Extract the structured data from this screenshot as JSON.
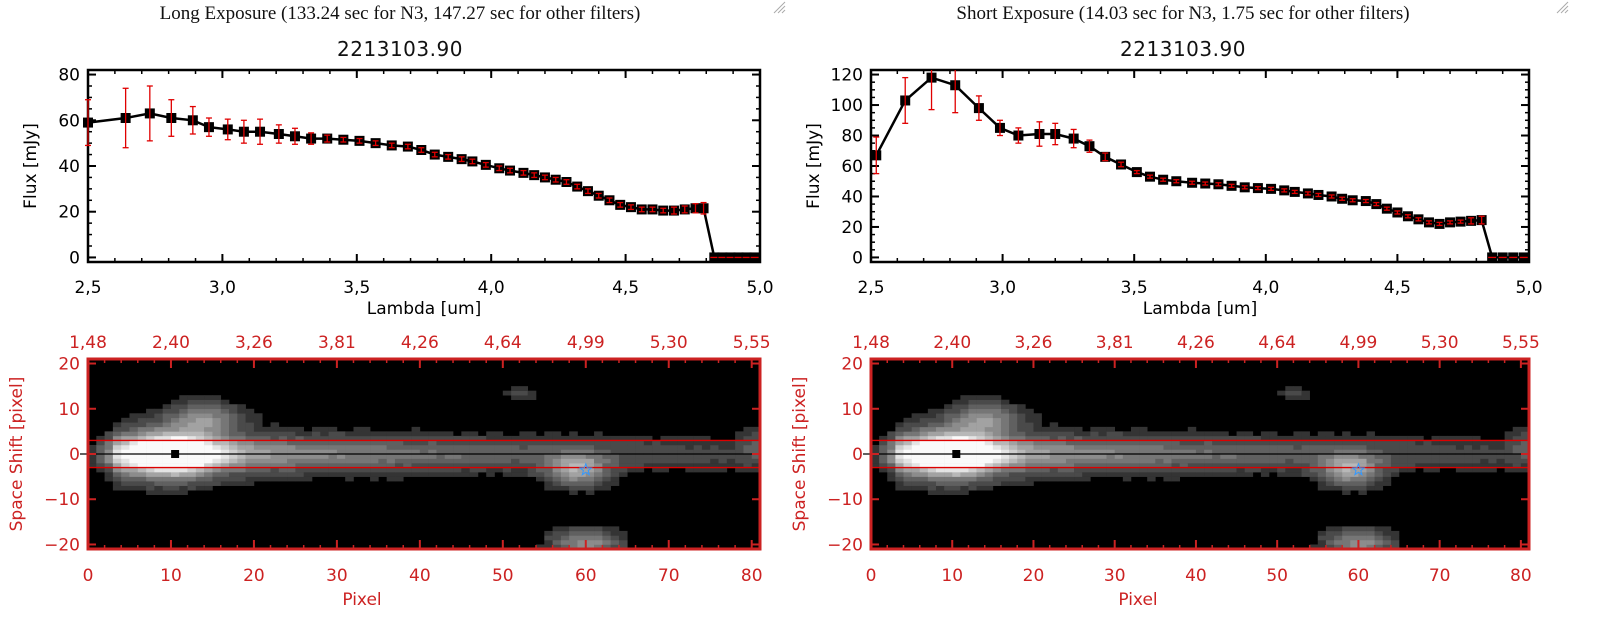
{
  "colors": {
    "spectrum_line": "#000000",
    "error_bar": "#e00000",
    "image_axis": "#cc2222",
    "extraction_line": "#dd0000",
    "centroid_marker": "#000000",
    "star_marker": "#3399ff"
  },
  "panels": [
    {
      "id": "long",
      "exposure_title": "Long Exposure (133.24 sec for N3, 147.27 sec for other filters)",
      "object_title": "2213103.90",
      "spectrum": {
        "xlabel": "Lambda [um]",
        "ylabel": "Flux [mJy]",
        "xticks": [
          "2.5",
          "3.0",
          "3.5",
          "4.0",
          "4.5",
          "5.0"
        ],
        "yticks": [
          "0",
          "20",
          "40",
          "60",
          "80"
        ]
      },
      "image": {
        "xlabel": "Pixel",
        "ylabel": "Space Shift [pixel]",
        "bottom_ticks": [
          "0",
          "10",
          "20",
          "30",
          "40",
          "50",
          "60",
          "70",
          "80"
        ],
        "top_ticks": [
          "1.48",
          "2.40",
          "3.26",
          "3.81",
          "4.26",
          "4.64",
          "4.99",
          "5.30",
          "5.55"
        ],
        "left_ticks": [
          "20",
          "10",
          "0",
          "-10",
          "-20"
        ]
      }
    },
    {
      "id": "short",
      "exposure_title": "Short Exposure (14.03 sec for N3, 1.75 sec for other filters)",
      "object_title": "2213103.90",
      "spectrum": {
        "xlabel": "Lambda [um]",
        "ylabel": "Flux [mJy]",
        "xticks": [
          "2.5",
          "3.0",
          "3.5",
          "4.0",
          "4.5",
          "5.0"
        ],
        "yticks": [
          "0",
          "20",
          "40",
          "60",
          "80",
          "100",
          "120"
        ]
      },
      "image": {
        "xlabel": "Pixel",
        "ylabel": "Space Shift [pixel]",
        "bottom_ticks": [
          "0",
          "10",
          "20",
          "30",
          "40",
          "50",
          "60",
          "70",
          "80"
        ],
        "top_ticks": [
          "1.48",
          "2.40",
          "3.26",
          "3.81",
          "4.26",
          "4.64",
          "4.99",
          "5.30",
          "5.55"
        ],
        "left_ticks": [
          "20",
          "10",
          "0",
          "-10",
          "-20"
        ]
      }
    }
  ],
  "chart_data": [
    {
      "type": "line",
      "title": "2213103.90",
      "subtitle": "Long Exposure (133.24 sec for N3, 147.27 sec for other filters)",
      "xlabel": "Lambda [um]",
      "ylabel": "Flux [mJy]",
      "xlim": [
        2.5,
        5.0
      ],
      "ylim": [
        -2,
        82
      ],
      "grid": false,
      "x": [
        2.5,
        2.64,
        2.73,
        2.81,
        2.89,
        2.95,
        3.02,
        3.08,
        3.14,
        3.21,
        3.27,
        3.33,
        3.39,
        3.45,
        3.51,
        3.57,
        3.63,
        3.69,
        3.74,
        3.79,
        3.84,
        3.89,
        3.93,
        3.98,
        4.03,
        4.07,
        4.12,
        4.16,
        4.2,
        4.24,
        4.28,
        4.32,
        4.36,
        4.4,
        4.44,
        4.48,
        4.52,
        4.56,
        4.6,
        4.64,
        4.68,
        4.72,
        4.76,
        4.79,
        4.83,
        4.86,
        4.89,
        4.92,
        4.95,
        4.98
      ],
      "y": [
        59,
        61,
        63,
        61,
        60,
        57,
        56,
        55,
        55,
        54,
        53,
        52,
        52,
        51.5,
        51,
        50,
        49,
        48.5,
        47,
        45,
        44,
        43,
        42,
        40.5,
        39,
        38,
        37,
        36,
        35,
        34,
        33,
        31,
        29,
        27,
        25,
        23,
        22,
        21,
        21,
        20.5,
        20.5,
        21,
        21.5,
        21.5,
        0,
        0,
        0,
        0,
        0,
        0
      ],
      "yerr": [
        10,
        13,
        12,
        8,
        6,
        4,
        4.5,
        5,
        5.5,
        4,
        3.5,
        2.5,
        1.5,
        1,
        1,
        1,
        1,
        1,
        1,
        1,
        1,
        1,
        1,
        1,
        1,
        1,
        1,
        1,
        1,
        1,
        1,
        1,
        1,
        1,
        1,
        1,
        1,
        1,
        1,
        1,
        1.5,
        1.5,
        2,
        2.5,
        0,
        0,
        0,
        0,
        0,
        0
      ]
    },
    {
      "type": "line",
      "title": "2213103.90",
      "subtitle": "Short Exposure (14.03 sec for N3, 1.75 sec for other filters)",
      "xlabel": "Lambda [um]",
      "ylabel": "Flux [mJy]",
      "xlim": [
        2.5,
        5.0
      ],
      "ylim": [
        -3,
        123
      ],
      "grid": false,
      "x": [
        2.52,
        2.63,
        2.73,
        2.82,
        2.91,
        2.99,
        3.06,
        3.14,
        3.2,
        3.27,
        3.33,
        3.39,
        3.45,
        3.51,
        3.56,
        3.61,
        3.66,
        3.72,
        3.77,
        3.82,
        3.87,
        3.92,
        3.97,
        4.02,
        4.07,
        4.11,
        4.16,
        4.2,
        4.25,
        4.29,
        4.33,
        4.38,
        4.42,
        4.46,
        4.5,
        4.54,
        4.58,
        4.62,
        4.66,
        4.7,
        4.74,
        4.78,
        4.82,
        4.86,
        4.9,
        4.94,
        4.98
      ],
      "y": [
        67,
        103,
        118,
        113,
        98,
        85,
        80,
        81,
        81,
        78,
        73,
        66,
        61,
        56,
        53,
        51,
        50,
        49,
        48.5,
        48,
        47,
        46,
        45.5,
        45,
        44,
        43,
        42,
        41,
        40,
        38.5,
        37.5,
        37,
        35,
        32,
        29.5,
        27,
        25,
        23,
        22,
        23,
        23.5,
        24,
        24.5,
        0,
        0,
        0,
        0
      ],
      "yerr": [
        12,
        15,
        21,
        18,
        8,
        5,
        5,
        8,
        7,
        6,
        4,
        2.5,
        1.5,
        1,
        1,
        1,
        1,
        1,
        1,
        1,
        1,
        1,
        1,
        1,
        1,
        1,
        1,
        1,
        1,
        1,
        1,
        1,
        1,
        1,
        1,
        1,
        1,
        1,
        1,
        1,
        1,
        2,
        2.5,
        0,
        0,
        0,
        0
      ]
    },
    {
      "type": "heatmap",
      "title": "2D spectral image (long exposure)",
      "xlabel": "Pixel",
      "ylabel": "Space Shift [pixel]",
      "xlim": [
        0,
        81
      ],
      "ylim": [
        -21,
        21
      ],
      "top_axis_label": "Lambda [um]",
      "top_ticks": [
        "1.48",
        "2.40",
        "3.26",
        "3.81",
        "4.26",
        "4.64",
        "4.99",
        "5.30",
        "5.55"
      ],
      "extraction_window": [
        -3,
        3
      ],
      "trace_center": 0,
      "peak_marker": {
        "x": 10.5,
        "y": 0
      },
      "star_marker": {
        "x": 60,
        "y": -3.5
      },
      "features": [
        {
          "name": "main trace",
          "x_start": 0,
          "x_end": 80,
          "y": 0,
          "peak_x": 10
        },
        {
          "name": "blob upper",
          "x": 14,
          "y": 8
        },
        {
          "name": "blob right",
          "x": 59,
          "y": -3.5
        },
        {
          "name": "blob bottom",
          "x": 60,
          "y": -19
        },
        {
          "name": "blob faint",
          "x": 52,
          "y": 14
        }
      ]
    },
    {
      "type": "heatmap",
      "title": "2D spectral image (short exposure)",
      "xlabel": "Pixel",
      "ylabel": "Space Shift [pixel]",
      "xlim": [
        0,
        81
      ],
      "ylim": [
        -21,
        21
      ],
      "top_axis_label": "Lambda [um]",
      "top_ticks": [
        "1.48",
        "2.40",
        "3.26",
        "3.81",
        "4.26",
        "4.64",
        "4.99",
        "5.30",
        "5.55"
      ],
      "extraction_window": [
        -3,
        3
      ],
      "trace_center": 0,
      "peak_marker": {
        "x": 10.5,
        "y": 0
      },
      "star_marker": {
        "x": 60,
        "y": -3.5
      },
      "features": [
        {
          "name": "main trace",
          "x_start": 0,
          "x_end": 80,
          "y": 0,
          "peak_x": 10
        },
        {
          "name": "blob upper",
          "x": 14,
          "y": 8
        },
        {
          "name": "blob right",
          "x": 59,
          "y": -3.5
        },
        {
          "name": "blob bottom",
          "x": 60,
          "y": -19
        },
        {
          "name": "blob faint",
          "x": 52,
          "y": 14
        }
      ]
    }
  ]
}
